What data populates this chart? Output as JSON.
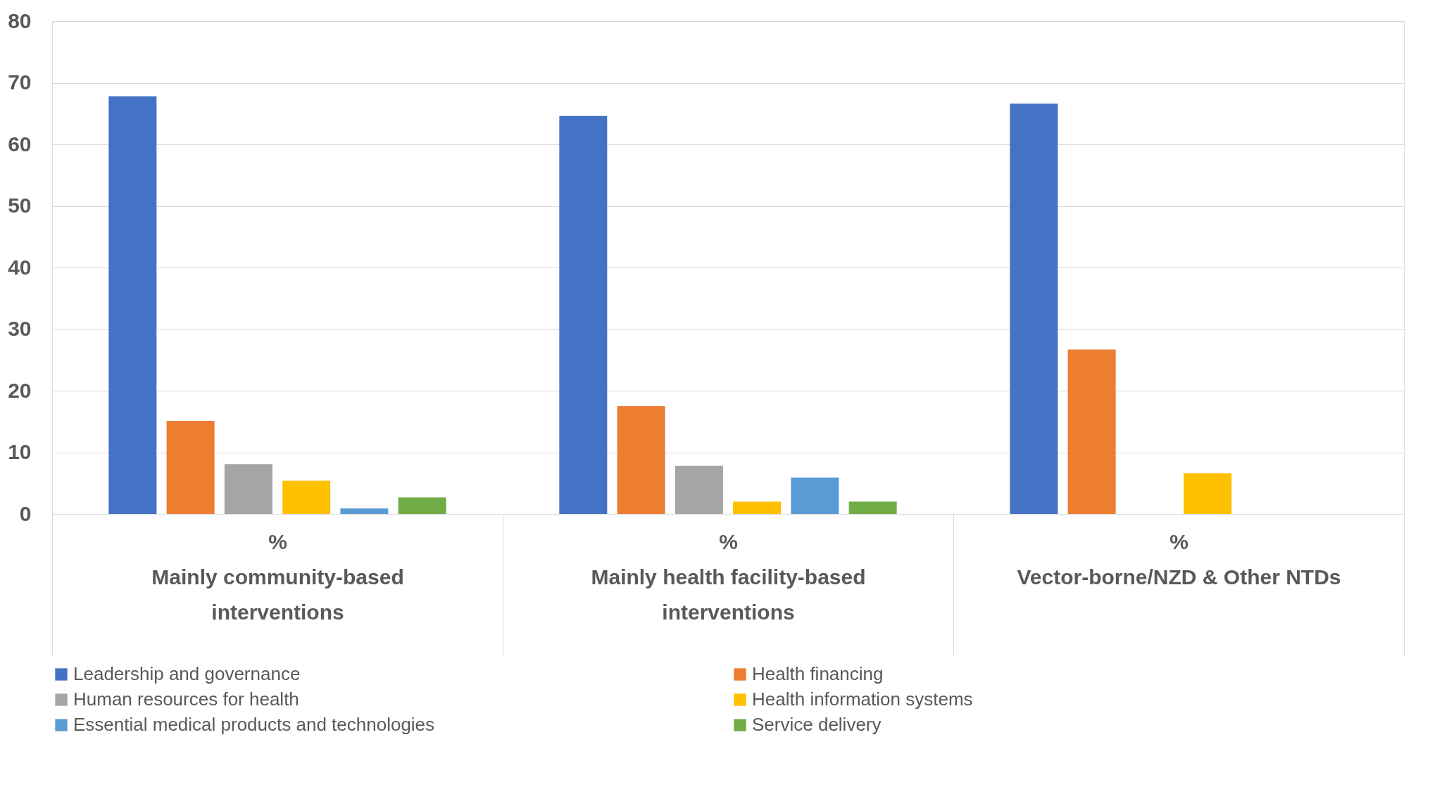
{
  "chart_data": {
    "type": "bar",
    "xlabel": "%",
    "categories": [
      "Mainly community-based interventions",
      "Mainly health facility-based interventions",
      "Vector-borne/NZD & Other NTDs"
    ],
    "series": [
      {
        "name": "Leadership and governance",
        "color": "#4472c4",
        "values": [
          67.8,
          64.6,
          66.6
        ]
      },
      {
        "name": "Health financing",
        "color": "#ed7d31",
        "values": [
          15.1,
          17.5,
          26.7
        ]
      },
      {
        "name": "Human resources for health",
        "color": "#a5a5a5",
        "values": [
          8.1,
          7.8,
          null
        ]
      },
      {
        "name": "Health information systems",
        "color": "#ffc000",
        "values": [
          5.4,
          2.0,
          6.6
        ]
      },
      {
        "name": "Essential medical products and technologies",
        "color": "#5b9bd5",
        "values": [
          0.9,
          5.9,
          null
        ]
      },
      {
        "name": "Service delivery",
        "color": "#70ad47",
        "values": [
          2.7,
          2.0,
          null
        ]
      }
    ],
    "ylim": [
      0,
      80
    ],
    "yticks": [
      0,
      10,
      20,
      30,
      40,
      50,
      60,
      70,
      80
    ],
    "grid": "y",
    "legend": "bottom"
  }
}
